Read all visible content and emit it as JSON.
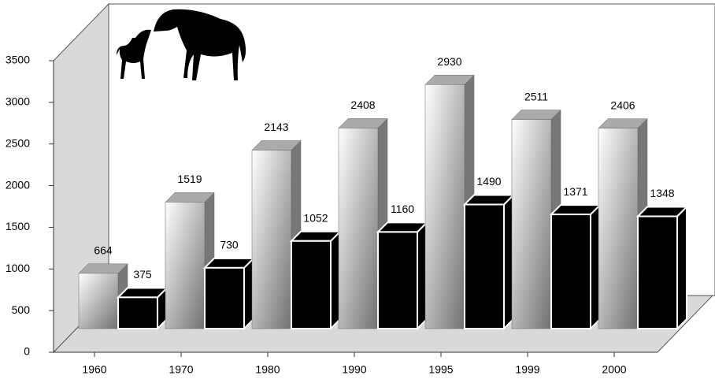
{
  "chart_data": {
    "type": "bar3d",
    "categories": [
      "1960",
      "1970",
      "1980",
      "1990",
      "1995",
      "1999",
      "2000"
    ],
    "series": [
      {
        "color": "#999999",
        "values": [
          664,
          1519,
          2143,
          2408,
          2930,
          2511,
          2406
        ]
      },
      {
        "color": "#000000",
        "values": [
          375,
          730,
          1052,
          1160,
          1490,
          1371,
          1348
        ]
      }
    ],
    "ylim": [
      0,
      3500
    ],
    "yticks": [
      0,
      500,
      1000,
      1500,
      2000,
      2500,
      3000,
      3500
    ]
  }
}
